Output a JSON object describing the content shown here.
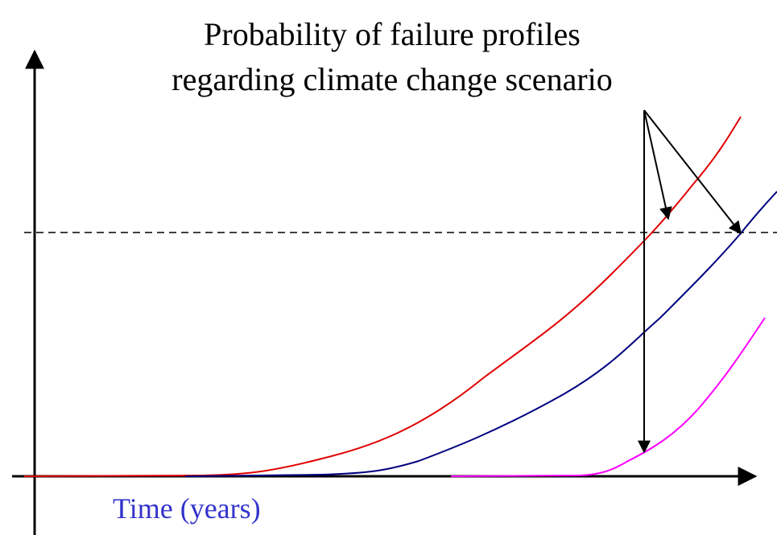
{
  "title": {
    "lines": [
      "Probability of  failure profiles",
      "regarding climate change scenario"
    ]
  },
  "x_axis_label": "Time (years)"
}
